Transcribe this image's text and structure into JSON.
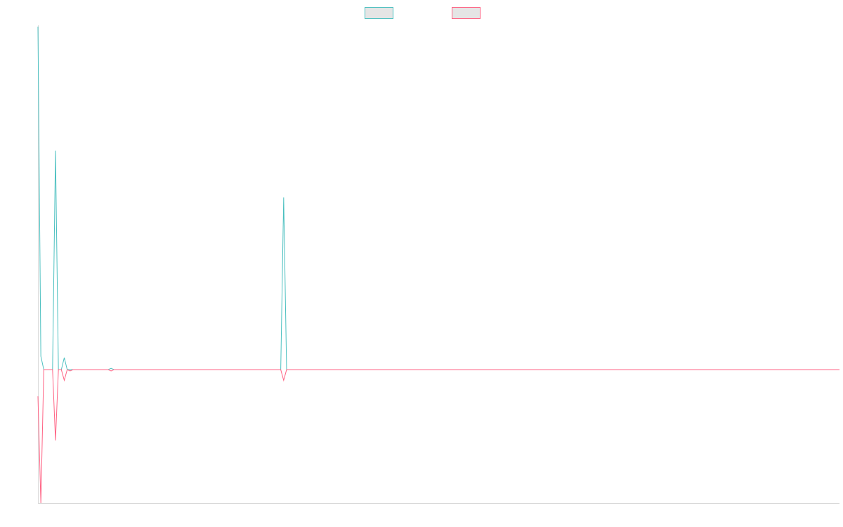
{
  "colors": {
    "background": "#ffffff",
    "axis": "#d9d9d9",
    "legend_fill": "#e5e5e5"
  },
  "chart_data": {
    "type": "line",
    "title": "",
    "xlabel": "",
    "ylabel": "",
    "grid": false,
    "legend_placement": "top-center",
    "x_range": [
      0,
      137
    ],
    "ylim": [
      -100,
      258
    ],
    "series": [
      {
        "color": "#4bc0c0",
        "legend_fill": "#e5e5e5",
        "points": [
          [
            0,
            257
          ],
          [
            0.5,
            10
          ],
          [
            1,
            0
          ],
          [
            2,
            0
          ],
          [
            2.5,
            0
          ],
          [
            3,
            164
          ],
          [
            3.5,
            0
          ],
          [
            4,
            0
          ],
          [
            4.5,
            9
          ],
          [
            5,
            0
          ],
          [
            6,
            0
          ],
          [
            7,
            0
          ],
          [
            8,
            0
          ],
          [
            9,
            0
          ],
          [
            10,
            0
          ],
          [
            11,
            0
          ],
          [
            12,
            0
          ],
          [
            12.5,
            1
          ],
          [
            13,
            0
          ],
          [
            20,
            0
          ],
          [
            30,
            0
          ],
          [
            41,
            0
          ],
          [
            41.5,
            0
          ],
          [
            42,
            129
          ],
          [
            42.5,
            0
          ],
          [
            43,
            0
          ],
          [
            60,
            0
          ],
          [
            80,
            0
          ],
          [
            100,
            0
          ],
          [
            120,
            0
          ],
          [
            137,
            0
          ]
        ]
      },
      {
        "color": "#ff6384",
        "legend_fill": "#e5e5e5",
        "points": [
          [
            0,
            -20
          ],
          [
            0.5,
            -100
          ],
          [
            1,
            0
          ],
          [
            2,
            0
          ],
          [
            2.5,
            0
          ],
          [
            3,
            -53
          ],
          [
            3.5,
            0
          ],
          [
            4,
            0
          ],
          [
            4.5,
            -8
          ],
          [
            5,
            0
          ],
          [
            5.5,
            -1
          ],
          [
            6,
            0
          ],
          [
            7,
            0
          ],
          [
            8,
            0
          ],
          [
            9,
            0
          ],
          [
            10,
            0
          ],
          [
            11,
            0
          ],
          [
            12,
            0
          ],
          [
            12.5,
            -1
          ],
          [
            13,
            0
          ],
          [
            20,
            0
          ],
          [
            30,
            0
          ],
          [
            41,
            0
          ],
          [
            41.5,
            0
          ],
          [
            42,
            -8
          ],
          [
            42.5,
            0
          ],
          [
            43,
            0
          ],
          [
            60,
            0
          ],
          [
            80,
            0
          ],
          [
            100,
            0
          ],
          [
            120,
            0
          ],
          [
            137,
            0
          ]
        ]
      }
    ]
  }
}
